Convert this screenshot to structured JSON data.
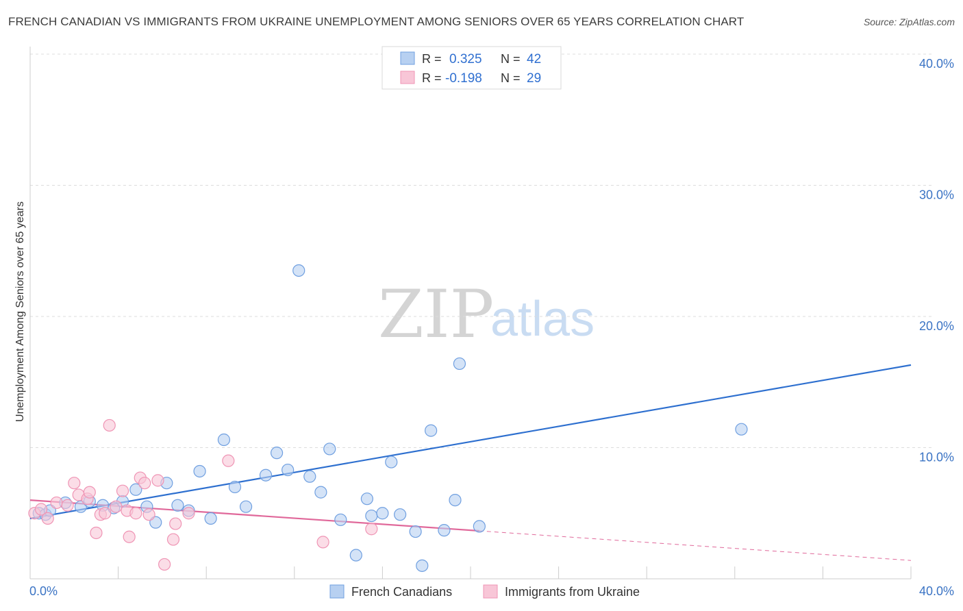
{
  "header": {
    "title": "FRENCH CANADIAN VS IMMIGRANTS FROM UKRAINE UNEMPLOYMENT AMONG SENIORS OVER 65 YEARS CORRELATION CHART",
    "source": "Source: ZipAtlas.com"
  },
  "watermark": {
    "zip": "ZIP",
    "atlas": "atlas"
  },
  "chart_data": {
    "type": "scatter",
    "title": "FRENCH CANADIAN VS IMMIGRANTS FROM UKRAINE UNEMPLOYMENT AMONG SENIORS OVER 65 YEARS CORRELATION CHART",
    "xlabel": "",
    "ylabel": "Unemployment Among Seniors over 65 years",
    "xlim": [
      0,
      40
    ],
    "ylim": [
      0,
      40
    ],
    "x_tick_labels": [
      "0.0%",
      "40.0%"
    ],
    "y_ticks": [
      10,
      20,
      30,
      40
    ],
    "y_tick_labels": [
      "10.0%",
      "20.0%",
      "30.0%",
      "40.0%"
    ],
    "grid": true,
    "legend": {
      "position": "top-center",
      "entries": [
        {
          "r_label": "R =",
          "r_value": "0.325",
          "n_label": "N =",
          "n_value": "42"
        },
        {
          "r_label": "R =",
          "r_value": "-0.198",
          "n_label": "N =",
          "n_value": "29"
        }
      ]
    },
    "series": [
      {
        "name": "French Canadians",
        "color": "#6f9fe0",
        "fill": "#b7d0f1",
        "line_color": "#2d6fcf",
        "trend": {
          "x": [
            0,
            40
          ],
          "y": [
            4.6,
            16.3
          ],
          "dashed_from": null
        },
        "points": [
          [
            0.4,
            5.0
          ],
          [
            0.7,
            4.9
          ],
          [
            0.9,
            5.2
          ],
          [
            1.6,
            5.8
          ],
          [
            2.3,
            5.5
          ],
          [
            2.7,
            5.9
          ],
          [
            3.3,
            5.6
          ],
          [
            3.8,
            5.4
          ],
          [
            4.2,
            5.9
          ],
          [
            4.8,
            6.8
          ],
          [
            5.3,
            5.5
          ],
          [
            5.7,
            4.3
          ],
          [
            6.2,
            7.3
          ],
          [
            6.7,
            5.6
          ],
          [
            7.2,
            5.2
          ],
          [
            7.7,
            8.2
          ],
          [
            8.2,
            4.6
          ],
          [
            8.8,
            10.6
          ],
          [
            9.3,
            7.0
          ],
          [
            9.8,
            5.5
          ],
          [
            10.7,
            7.9
          ],
          [
            11.2,
            9.6
          ],
          [
            11.7,
            8.3
          ],
          [
            12.2,
            23.5
          ],
          [
            12.7,
            7.8
          ],
          [
            13.2,
            6.6
          ],
          [
            13.6,
            9.9
          ],
          [
            14.1,
            4.5
          ],
          [
            14.8,
            1.8
          ],
          [
            15.3,
            6.1
          ],
          [
            15.5,
            4.8
          ],
          [
            16.0,
            5.0
          ],
          [
            16.4,
            8.9
          ],
          [
            16.8,
            4.9
          ],
          [
            17.5,
            3.6
          ],
          [
            17.8,
            1.0
          ],
          [
            18.2,
            11.3
          ],
          [
            18.8,
            3.7
          ],
          [
            19.3,
            6.0
          ],
          [
            19.5,
            16.4
          ],
          [
            20.4,
            4.0
          ],
          [
            32.3,
            11.4
          ]
        ]
      },
      {
        "name": "Immigrants from Ukraine",
        "color": "#ef94b4",
        "fill": "#f8c6d7",
        "line_color": "#e0689a",
        "trend": {
          "x": [
            0,
            40
          ],
          "y": [
            6.0,
            1.4
          ],
          "dashed_from": 20.4
        },
        "points": [
          [
            0.2,
            5.0
          ],
          [
            0.5,
            5.3
          ],
          [
            0.8,
            4.6
          ],
          [
            1.2,
            5.8
          ],
          [
            1.7,
            5.6
          ],
          [
            2.0,
            7.3
          ],
          [
            2.2,
            6.4
          ],
          [
            2.6,
            6.1
          ],
          [
            2.7,
            6.6
          ],
          [
            3.0,
            3.5
          ],
          [
            3.2,
            4.9
          ],
          [
            3.4,
            5.0
          ],
          [
            3.6,
            11.7
          ],
          [
            3.9,
            5.5
          ],
          [
            4.2,
            6.7
          ],
          [
            4.4,
            5.2
          ],
          [
            4.5,
            3.2
          ],
          [
            4.8,
            5.0
          ],
          [
            5.0,
            7.7
          ],
          [
            5.2,
            7.3
          ],
          [
            5.4,
            4.9
          ],
          [
            5.8,
            7.5
          ],
          [
            6.1,
            1.1
          ],
          [
            6.5,
            3.0
          ],
          [
            6.6,
            4.2
          ],
          [
            7.2,
            5.0
          ],
          [
            9.0,
            9.0
          ],
          [
            13.3,
            2.8
          ],
          [
            15.5,
            3.8
          ]
        ]
      }
    ]
  },
  "bottom_legend": [
    {
      "label": "French Canadians"
    },
    {
      "label": "Immigrants from Ukraine"
    }
  ],
  "colors": {
    "grid": "#dcdcdc",
    "axis": "#cccccc",
    "tick_text": "#3a73c4"
  }
}
